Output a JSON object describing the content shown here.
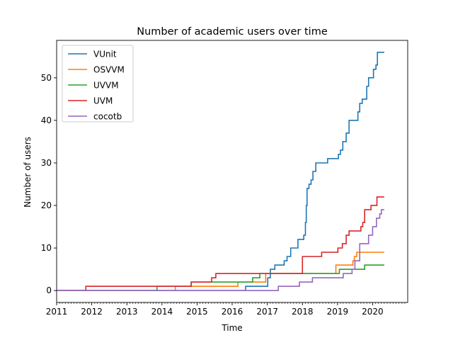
{
  "chart_data": {
    "type": "line",
    "step": true,
    "title": "Number of academic users over time",
    "xlabel": "Time",
    "ylabel": "Number of users",
    "xlim": [
      "2011-01-01",
      "2020-12-31"
    ],
    "ylim": [
      -2.8,
      58.8
    ],
    "x_ticks": [
      "2011",
      "2012",
      "2013",
      "2014",
      "2015",
      "2016",
      "2017",
      "2018",
      "2019",
      "2020"
    ],
    "y_ticks": [
      "0",
      "10",
      "20",
      "30",
      "40",
      "50"
    ],
    "grid": false,
    "legend_position": "top-left",
    "series": [
      {
        "name": "VUnit",
        "color": "#1f77b4",
        "points": [
          [
            "2011-01-01",
            0
          ],
          [
            "2016-05-20",
            1
          ],
          [
            "2017-01-05",
            3
          ],
          [
            "2017-02-01",
            5
          ],
          [
            "2017-03-20",
            6
          ],
          [
            "2017-06-25",
            7
          ],
          [
            "2017-07-25",
            8
          ],
          [
            "2017-09-01",
            10
          ],
          [
            "2017-11-15",
            12
          ],
          [
            "2018-01-15",
            13
          ],
          [
            "2018-02-01",
            16
          ],
          [
            "2018-02-10",
            20
          ],
          [
            "2018-02-18",
            24
          ],
          [
            "2018-03-10",
            25
          ],
          [
            "2018-04-01",
            26
          ],
          [
            "2018-04-20",
            28
          ],
          [
            "2018-05-20",
            30
          ],
          [
            "2018-09-20",
            31
          ],
          [
            "2019-01-10",
            32
          ],
          [
            "2019-02-01",
            33
          ],
          [
            "2019-02-25",
            35
          ],
          [
            "2019-04-01",
            37
          ],
          [
            "2019-05-01",
            40
          ],
          [
            "2019-08-01",
            42
          ],
          [
            "2019-08-20",
            44
          ],
          [
            "2019-09-15",
            45
          ],
          [
            "2019-11-01",
            48
          ],
          [
            "2019-11-20",
            50
          ],
          [
            "2020-01-10",
            52
          ],
          [
            "2020-02-05",
            53
          ],
          [
            "2020-02-20",
            56
          ],
          [
            "2020-05-01",
            56
          ]
        ]
      },
      {
        "name": "OSVVM",
        "color": "#ff7f0e",
        "points": [
          [
            "2011-01-01",
            0
          ],
          [
            "2014-05-20",
            1
          ],
          [
            "2016-03-01",
            2
          ],
          [
            "2016-12-15",
            4
          ],
          [
            "2018-12-15",
            6
          ],
          [
            "2019-06-10",
            7
          ],
          [
            "2019-06-25",
            8
          ],
          [
            "2019-07-20",
            9
          ],
          [
            "2020-05-01",
            9
          ]
        ]
      },
      {
        "name": "UVVM",
        "color": "#2ca02c",
        "points": [
          [
            "2011-01-01",
            0
          ],
          [
            "2013-11-10",
            1
          ],
          [
            "2014-11-01",
            2
          ],
          [
            "2016-08-01",
            3
          ],
          [
            "2016-10-15",
            4
          ],
          [
            "2019-01-20",
            5
          ],
          [
            "2019-10-10",
            6
          ],
          [
            "2020-05-01",
            6
          ]
        ]
      },
      {
        "name": "UVM",
        "color": "#d62728",
        "points": [
          [
            "2011-01-01",
            0
          ],
          [
            "2011-11-01",
            1
          ],
          [
            "2014-11-01",
            2
          ],
          [
            "2015-06-01",
            3
          ],
          [
            "2015-07-15",
            4
          ],
          [
            "2018-01-01",
            8
          ],
          [
            "2018-07-20",
            9
          ],
          [
            "2019-01-05",
            10
          ],
          [
            "2019-02-20",
            11
          ],
          [
            "2019-04-01",
            13
          ],
          [
            "2019-05-01",
            14
          ],
          [
            "2019-09-01",
            15
          ],
          [
            "2019-09-20",
            16
          ],
          [
            "2019-10-10",
            19
          ],
          [
            "2019-12-15",
            20
          ],
          [
            "2020-02-15",
            22
          ],
          [
            "2020-05-01",
            22
          ]
        ]
      },
      {
        "name": "cocotb",
        "color": "#9467bd",
        "points": [
          [
            "2011-01-01",
            0
          ],
          [
            "2017-04-25",
            1
          ],
          [
            "2017-12-01",
            2
          ],
          [
            "2018-04-15",
            3
          ],
          [
            "2019-03-01",
            4
          ],
          [
            "2019-06-01",
            5
          ],
          [
            "2019-07-01",
            7
          ],
          [
            "2019-08-20",
            11
          ],
          [
            "2019-11-20",
            13
          ],
          [
            "2020-01-01",
            15
          ],
          [
            "2020-02-10",
            17
          ],
          [
            "2020-03-15",
            18
          ],
          [
            "2020-04-01",
            19
          ],
          [
            "2020-05-01",
            19
          ]
        ]
      }
    ]
  }
}
